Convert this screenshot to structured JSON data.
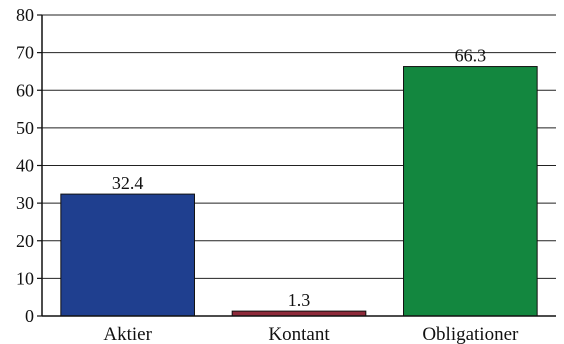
{
  "chart_data": {
    "type": "bar",
    "title": "",
    "xlabel": "",
    "ylabel": "",
    "categories": [
      "Aktier",
      "Kontant",
      "Obligationer"
    ],
    "values": [
      32.4,
      1.3,
      66.3
    ],
    "data_labels": [
      "32.4",
      "1.3",
      "66.3"
    ],
    "colors": [
      "#1f3f8f",
      "#8e2a3a",
      "#13873f"
    ],
    "ylim": [
      0,
      80
    ],
    "yticks": [
      0,
      10,
      20,
      30,
      40,
      50,
      60,
      70,
      80
    ],
    "grid": true,
    "legend": "none"
  }
}
